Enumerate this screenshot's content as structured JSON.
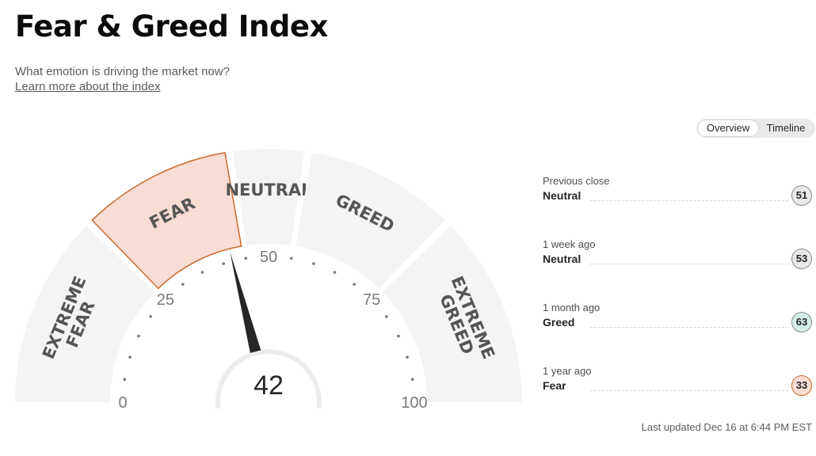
{
  "header": {
    "title": "Fear & Greed Index",
    "subtitle": "What emotion is driving the market now?",
    "learn_link": "Learn more about the index"
  },
  "view_toggle": {
    "options": [
      "Overview",
      "Timeline"
    ],
    "selected": "Overview"
  },
  "gauge": {
    "value": "42",
    "current_value": 42,
    "range": [
      0,
      100
    ],
    "active_zone": "FEAR",
    "zones": [
      {
        "label": "EXTREME FEAR",
        "lines": [
          "EXTREME",
          "FEAR"
        ],
        "from": 0,
        "to": 25
      },
      {
        "label": "FEAR",
        "lines": [
          "FEAR"
        ],
        "from": 25,
        "to": 45
      },
      {
        "label": "NEUTRAL",
        "lines": [
          "NEUTRAL"
        ],
        "from": 45,
        "to": 55
      },
      {
        "label": "GREED",
        "lines": [
          "GREED"
        ],
        "from": 55,
        "to": 75
      },
      {
        "label": "EXTREME GREED",
        "lines": [
          "EXTREME",
          "GREED"
        ],
        "from": 75,
        "to": 100
      }
    ],
    "ticks": [
      {
        "label": "0",
        "value": 0
      },
      {
        "label": "25",
        "value": 25
      },
      {
        "label": "50",
        "value": 50
      },
      {
        "label": "75",
        "value": 75
      },
      {
        "label": "100",
        "value": 100
      }
    ]
  },
  "history": [
    {
      "label": "Previous close",
      "value": "Neutral",
      "score": "51"
    },
    {
      "label": "1 week ago",
      "value": "Neutral",
      "score": "53"
    },
    {
      "label": "1 month ago",
      "value": "Greed",
      "score": "63"
    },
    {
      "label": "1 year ago",
      "value": "Fear",
      "score": "33"
    }
  ],
  "colors": {
    "zone_bg": "#f4f4f4",
    "active_fill": "#f9dcd4",
    "active_stroke": "#c96a2c",
    "needle": "#262626",
    "badge_neutral_bg": "#e9e9e9",
    "badge_greed_bg": "#d3eee8",
    "badge_fear_bg": "#f9dcd4"
  },
  "last_updated": "Last updated Dec 16 at 6:44 PM EST"
}
